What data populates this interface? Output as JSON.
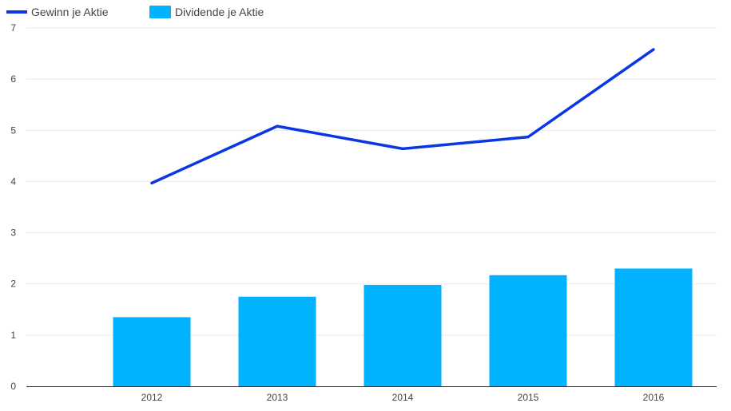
{
  "chart_data": {
    "type": "bar",
    "categories": [
      "2012",
      "2013",
      "2014",
      "2015",
      "2016"
    ],
    "series": [
      {
        "name": "Dividende je Aktie",
        "type": "bar",
        "color": "#00b2ff",
        "values": [
          1.35,
          1.75,
          1.98,
          2.17,
          2.3
        ]
      },
      {
        "name": "Gewinn je Aktie",
        "type": "line",
        "color": "#0b36e6",
        "values": [
          3.97,
          5.08,
          4.64,
          4.87,
          6.58
        ]
      }
    ],
    "title": "",
    "xlabel": "",
    "ylabel": "",
    "ylim": [
      0,
      7
    ],
    "yticks": [
      "0",
      "1",
      "2",
      "3",
      "4",
      "5",
      "6",
      "7"
    ],
    "legend": {
      "placement": "top-left",
      "entries": [
        "Gewinn je Aktie",
        "Dividende je Aktie"
      ]
    }
  },
  "colors": {
    "line": "#0b36e6",
    "bar": "#00b2ff",
    "grid": "#e9e9e9",
    "axis": "#333333",
    "text": "#444444"
  }
}
